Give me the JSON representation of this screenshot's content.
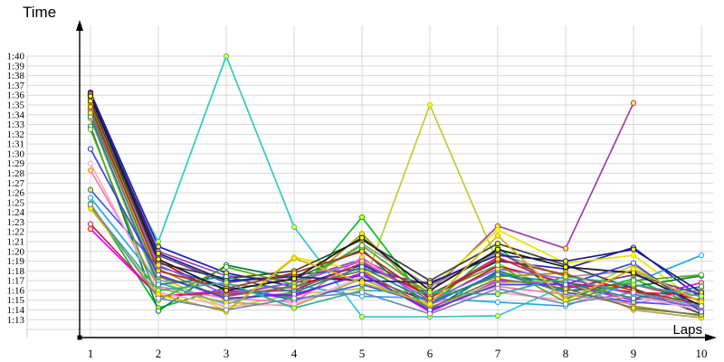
{
  "chart_data": {
    "type": "line",
    "title": "",
    "xlabel": "Laps",
    "ylabel": "Time",
    "x": [
      1,
      2,
      3,
      4,
      5,
      6,
      7,
      8,
      9,
      10
    ],
    "x_ticks": [
      "1",
      "2",
      "3",
      "4",
      "5",
      "6",
      "7",
      "8",
      "9",
      "10"
    ],
    "y_ticks_top_to_bottom": [
      "1:40",
      "1:39",
      "1:38",
      "1:37",
      "1:36",
      "1:35",
      "1:34",
      "1:33",
      "1:32",
      "1:31",
      "1:30",
      "1:29",
      "1:28",
      "1:27",
      "1:26",
      "1:25",
      "1:24",
      "1:23",
      "1:22",
      "1:21",
      "1:20",
      "1:19",
      "1:18",
      "1:17",
      "1:16",
      "1:15",
      "1:14",
      "1:13"
    ],
    "y_axis": {
      "labeled_min_sec": 73,
      "labeled_max_sec": 100,
      "extra_unlabeled_grid_sec": 72,
      "format": "m:ss"
    },
    "grid": true,
    "legend": "none",
    "colors": {
      "grid": "#d9d9d9",
      "axis": "#000000",
      "marker_fill_yellow": "#ffff00",
      "marker_fill_white": "#ffffff"
    },
    "series": [
      {
        "name": "teal",
        "color": "#2ec9c9",
        "marker_fill": "#ffff00",
        "values_sec": [
          94.0,
          81.0,
          100.0,
          82.5,
          73.3,
          73.3,
          73.4,
          76.5,
          75.0,
          76.0
        ]
      },
      {
        "name": "yellowgreen",
        "color": "#b9d033",
        "marker_fill": "#ffff00",
        "values_sec": [
          95.0,
          77.5,
          74.2,
          75.6,
          76.2,
          95.0,
          78.8,
          75.4,
          78.6,
          73.8
        ]
      },
      {
        "name": "purple",
        "color": "#a040a8",
        "marker_fill": "#ffff00",
        "values_sec": [
          96.0,
          80.0,
          77.5,
          77.0,
          79.2,
          75.8,
          82.6,
          80.3,
          95.2,
          null
        ]
      },
      {
        "name": "green",
        "color": "#00c020",
        "marker_fill": "#ffff00",
        "values_sec": [
          84.9,
          74.2,
          76.3,
          75.2,
          83.5,
          74.4,
          80.4,
          75.2,
          77.2,
          74.2
        ]
      },
      {
        "name": "navy",
        "color": "#2020c0",
        "marker_fill": "#ffff00",
        "values_sec": [
          96.3,
          80.5,
          77.8,
          76.4,
          78.6,
          75.6,
          79.0,
          78.2,
          80.4,
          75.2
        ]
      },
      {
        "name": "red",
        "color": "#e00000",
        "marker_fill": "#ffff00",
        "values_sec": [
          96.2,
          79.0,
          75.5,
          76.8,
          77.5,
          74.8,
          78.5,
          76.8,
          75.8,
          75.5
        ]
      },
      {
        "name": "yellow",
        "color": "#e6e600",
        "marker_fill": "#ffff00",
        "values_sec": [
          95.6,
          77.2,
          73.9,
          79.4,
          78.0,
          76.2,
          82.2,
          78.8,
          79.6,
          74.6
        ]
      },
      {
        "name": "darkgreen",
        "color": "#077d3c",
        "marker_fill": "#ffffff",
        "values_sec": [
          92.8,
          73.9,
          78.6,
          77.2,
          80.2,
          74.0,
          78.0,
          76.0,
          76.4,
          77.5
        ]
      },
      {
        "name": "olive",
        "color": "#9a9a00",
        "marker_fill": "#ffff00",
        "values_sec": [
          95.2,
          78.2,
          75.0,
          75.8,
          81.8,
          75.0,
          77.4,
          77.8,
          74.4,
          73.4
        ]
      },
      {
        "name": "gray",
        "color": "#9a9a9a",
        "marker_fill": "#ffff00",
        "values_sec": [
          94.6,
          77.0,
          76.6,
          76.2,
          80.8,
          76.4,
          79.8,
          77.4,
          78.0,
          74.8
        ]
      },
      {
        "name": "pink",
        "color": "#ff74b8",
        "marker_fill": "#ffff00",
        "values_sec": [
          88.3,
          76.4,
          75.2,
          74.8,
          79.4,
          74.6,
          76.4,
          75.6,
          74.6,
          76.2
        ]
      },
      {
        "name": "magenta",
        "color": "#f000f0",
        "marker_fill": "#ffff00",
        "values_sec": [
          82.3,
          75.4,
          76.0,
          75.4,
          77.8,
          73.8,
          77.0,
          76.6,
          75.0,
          76.8
        ]
      },
      {
        "name": "skyblue",
        "color": "#28a8f0",
        "marker_fill": "#ffffff",
        "values_sec": [
          85.5,
          76.8,
          74.6,
          76.6,
          75.4,
          75.2,
          74.8,
          74.4,
          76.8,
          79.6
        ]
      },
      {
        "name": "darkpurple",
        "color": "#6a3aa0",
        "marker_fill": "#ffff00",
        "values_sec": [
          95.8,
          79.6,
          76.8,
          77.6,
          78.2,
          76.6,
          80.0,
          76.2,
          77.6,
          75.6
        ]
      },
      {
        "name": "darkgray",
        "color": "#404040",
        "marker_fill": "#ffff00",
        "values_sec": [
          95.4,
          78.8,
          77.2,
          78.0,
          81.2,
          77.0,
          80.8,
          78.6,
          76.2,
          73.6
        ]
      },
      {
        "name": "khaki",
        "color": "#b0a858",
        "marker_fill": "#ffff00",
        "values_sec": [
          93.6,
          76.2,
          74.8,
          74.4,
          77.2,
          74.2,
          76.8,
          77.0,
          74.0,
          73.2
        ]
      },
      {
        "name": "blue",
        "color": "#3858ff",
        "marker_fill": "#ffff00",
        "values_sec": [
          86.3,
          78.4,
          76.4,
          75.0,
          76.6,
          74.6,
          77.8,
          75.8,
          74.8,
          74.4
        ]
      },
      {
        "name": "crimson",
        "color": "#d02060",
        "marker_fill": "#ffffff",
        "values_sec": [
          82.8,
          75.4,
          75.8,
          76.0,
          78.8,
          75.4,
          79.4,
          76.4,
          76.6,
          75.0
        ]
      },
      {
        "name": "lightpink",
        "color": "#ffa8c8",
        "marker_fill": "#ffffff",
        "values_sec": [
          89.0,
          75.8,
          74.4,
          74.6,
          77.4,
          74.4,
          75.8,
          75.0,
          75.4,
          74.0
        ]
      },
      {
        "name": "violet",
        "color": "#9060e8",
        "marker_fill": "#ffff00",
        "values_sec": [
          94.4,
          78.6,
          75.6,
          76.8,
          79.0,
          75.0,
          78.2,
          77.2,
          75.6,
          74.2
        ]
      },
      {
        "name": "darkteal",
        "color": "#108888",
        "marker_fill": "#ffffff",
        "values_sec": [
          93.8,
          76.6,
          77.4,
          75.8,
          78.4,
          74.8,
          77.6,
          76.8,
          75.2,
          76.4
        ]
      },
      {
        "name": "mediumgreen",
        "color": "#55aa22",
        "marker_fill": "#ffffff",
        "values_sec": [
          92.5,
          75.0,
          78.4,
          76.6,
          80.6,
          75.6,
          78.6,
          74.8,
          77.0,
          77.6
        ]
      },
      {
        "name": "darkblue",
        "color": "#202080",
        "marker_fill": "#ffff00",
        "values_sec": [
          96.1,
          79.8,
          77.0,
          77.4,
          77.0,
          76.8,
          79.6,
          79.0,
          80.2,
          75.8
        ]
      },
      {
        "name": "brickred",
        "color": "#b03010",
        "marker_fill": "#ffff00",
        "values_sec": [
          94.8,
          78.0,
          76.2,
          77.8,
          80.0,
          75.2,
          79.2,
          77.6,
          76.0,
          74.6
        ]
      },
      {
        "name": "olivegray",
        "color": "#74744c",
        "marker_fill": "#ffff00",
        "values_sec": [
          94.2,
          77.4,
          75.4,
          76.4,
          78.0,
          74.2,
          77.2,
          76.2,
          74.2,
          73.5
        ]
      },
      {
        "name": "black",
        "color": "#1a1a1a",
        "marker_fill": "#ffff00",
        "values_sec": [
          95.9,
          79.2,
          76.0,
          77.2,
          81.4,
          76.0,
          80.2,
          78.4,
          77.8,
          74.4
        ]
      },
      {
        "name": "royalblue",
        "color": "#4040e0",
        "marker_fill": "#ffffff",
        "values_sec": [
          90.5,
          77.6,
          75.2,
          75.6,
          77.6,
          74.0,
          76.6,
          76.6,
          78.8,
          73.8
        ]
      },
      {
        "name": "seagreen",
        "color": "#30b090",
        "marker_fill": "#ffff00",
        "values_sec": [
          84.6,
          76.0,
          76.8,
          74.2,
          76.0,
          75.8,
          75.6,
          77.4,
          76.6,
          75.4
        ]
      },
      {
        "name": "gold",
        "color": "#d4b400",
        "marker_fill": "#ffff00",
        "values_sec": [
          84.4,
          75.6,
          73.8,
          79.3,
          76.8,
          74.6,
          81.6,
          75.0,
          78.2,
          74.8
        ]
      },
      {
        "name": "slate",
        "color": "#7788aa",
        "marker_fill": "#ffffff",
        "values_sec": [
          84.8,
          75.2,
          74.0,
          75.2,
          75.8,
          73.6,
          76.2,
          74.6,
          75.8,
          74.4
        ]
      }
    ]
  }
}
